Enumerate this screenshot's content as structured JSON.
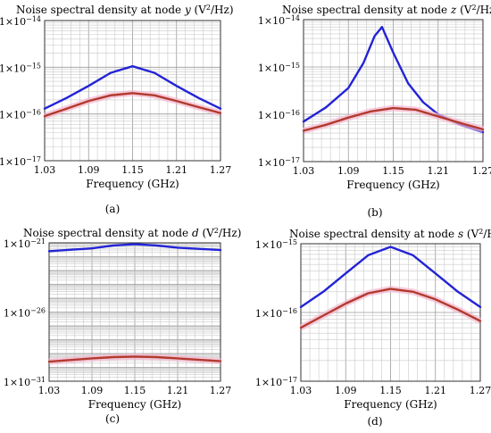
{
  "colors": {
    "blue_series": "#2323d6",
    "red_series": "#b23a2e",
    "pink_band": "#f3b7cf",
    "grid": "#9a9a9a",
    "frame": "#333333"
  },
  "chart_data": [
    {
      "id": "a",
      "type": "line",
      "caption": "(a)",
      "title_parts": [
        "Noise spectral density at node ",
        "y",
        " (V",
        "2",
        "/Hz)"
      ],
      "xlabel": "Frequency (GHz)",
      "ylabel": "",
      "x_ticks": [
        "1.03",
        "1.09",
        "1.15",
        "1.21",
        "1.27"
      ],
      "xlim": [
        1.03,
        1.27
      ],
      "y_scale": "log",
      "ylim_exp": [
        -17,
        -14
      ],
      "y_ticks": [
        {
          "exp": -14,
          "mant": "1×10",
          "sup": "−14"
        },
        {
          "exp": -15,
          "mant": "1×10",
          "sup": "−15"
        },
        {
          "exp": -16,
          "mant": "1×10",
          "sup": "−16"
        },
        {
          "exp": -17,
          "mant": "1×10",
          "sup": "−17"
        }
      ],
      "grid": true,
      "series": [
        {
          "color": "blue",
          "x": [
            1.03,
            1.06,
            1.09,
            1.12,
            1.15,
            1.18,
            1.21,
            1.24,
            1.27
          ],
          "y": [
            1.3e-16,
            2.2e-16,
            4e-16,
            7.6e-16,
            1.05e-15,
            7.6e-16,
            4e-16,
            2.2e-16,
            1.3e-16
          ]
        },
        {
          "color": "red",
          "x": [
            1.03,
            1.06,
            1.09,
            1.12,
            1.15,
            1.18,
            1.21,
            1.24,
            1.27
          ],
          "y": [
            9e-17,
            1.3e-16,
            1.9e-16,
            2.5e-16,
            2.8e-16,
            2.5e-16,
            1.9e-16,
            1.4e-16,
            1.05e-16
          ]
        }
      ]
    },
    {
      "id": "b",
      "type": "line",
      "caption": "(b)",
      "title_parts": [
        "Noise spectral density at node ",
        "z",
        " (V",
        "2",
        "/Hz)"
      ],
      "xlabel": "Frequency (GHz)",
      "ylabel": "",
      "x_ticks": [
        "1.03",
        "1.09",
        "1.15",
        "1.21",
        "1.27"
      ],
      "xlim": [
        1.03,
        1.27
      ],
      "y_scale": "log",
      "ylim_exp": [
        -17,
        -14
      ],
      "y_ticks": [
        {
          "exp": -14,
          "mant": "1×10",
          "sup": "−14"
        },
        {
          "exp": -15,
          "mant": "1×10",
          "sup": "−15"
        },
        {
          "exp": -16,
          "mant": "1×10",
          "sup": "−16"
        },
        {
          "exp": -17,
          "mant": "1×10",
          "sup": "−17"
        }
      ],
      "grid": true,
      "series": [
        {
          "color": "blue",
          "x": [
            1.03,
            1.06,
            1.09,
            1.11,
            1.125,
            1.135,
            1.15,
            1.17,
            1.19,
            1.21,
            1.24,
            1.27
          ],
          "y": [
            7e-17,
            1.4e-16,
            3.6e-16,
            1.2e-15,
            4.5e-15,
            7e-15,
            2e-15,
            4.5e-16,
            1.8e-16,
            1e-16,
            6e-17,
            4.2e-17
          ]
        },
        {
          "color": "red",
          "x": [
            1.03,
            1.06,
            1.09,
            1.12,
            1.15,
            1.18,
            1.21,
            1.24,
            1.27
          ],
          "y": [
            4.5e-17,
            6e-17,
            8.5e-17,
            1.15e-16,
            1.35e-16,
            1.25e-16,
            9e-17,
            6.5e-17,
            4.8e-17
          ]
        }
      ]
    },
    {
      "id": "c",
      "type": "line",
      "caption": "(c)",
      "title_parts": [
        "Noise spectral density at node ",
        "d",
        " (V",
        "2",
        "/Hz)"
      ],
      "xlabel": "Frequency (GHz)",
      "ylabel": "",
      "x_ticks": [
        "1.03",
        "1.09",
        "1.15",
        "1.21",
        "1.27"
      ],
      "xlim": [
        1.03,
        1.27
      ],
      "y_scale": "log",
      "ylim_exp": [
        -31,
        -21
      ],
      "y_ticks": [
        {
          "exp": -21,
          "mant": "1×10",
          "sup": "−21"
        },
        {
          "exp": -26,
          "mant": "1×10",
          "sup": "−26"
        },
        {
          "exp": -31,
          "mant": "1×10",
          "sup": "−31"
        }
      ],
      "grid": true,
      "series": [
        {
          "color": "blue",
          "x": [
            1.03,
            1.09,
            1.12,
            1.15,
            1.18,
            1.21,
            1.27
          ],
          "y": [
            2.5e-22,
            4e-22,
            6.5e-22,
            8e-22,
            6.5e-22,
            4.5e-22,
            3e-22
          ]
        },
        {
          "color": "red",
          "x": [
            1.03,
            1.09,
            1.12,
            1.15,
            1.18,
            1.21,
            1.27
          ],
          "y": [
            2.6e-30,
            4.5e-30,
            5.5e-30,
            6e-30,
            5.5e-30,
            4.5e-30,
            2.8e-30
          ]
        }
      ]
    },
    {
      "id": "d",
      "type": "line",
      "caption": "(d)",
      "title_parts": [
        "Noise spectral density at node ",
        "s",
        " (V",
        "2",
        "/Hz)"
      ],
      "xlabel": "Frequency (GHz)",
      "ylabel": "",
      "x_ticks": [
        "1.03",
        "1.09",
        "1.15",
        "1.21",
        "1.27"
      ],
      "xlim": [
        1.03,
        1.27
      ],
      "y_scale": "log",
      "ylim_exp": [
        -17,
        -15
      ],
      "y_ticks": [
        {
          "exp": -15,
          "mant": "1×10",
          "sup": "−15"
        },
        {
          "exp": -16,
          "mant": "1×10",
          "sup": "−16"
        },
        {
          "exp": -17,
          "mant": "1×10",
          "sup": "−17"
        }
      ],
      "grid": true,
      "series": [
        {
          "color": "blue",
          "x": [
            1.03,
            1.06,
            1.09,
            1.12,
            1.15,
            1.18,
            1.21,
            1.24,
            1.27
          ],
          "y": [
            1.2e-16,
            2e-16,
            3.7e-16,
            6.8e-16,
            9e-16,
            6.8e-16,
            3.7e-16,
            2e-16,
            1.2e-16
          ]
        },
        {
          "color": "red",
          "x": [
            1.03,
            1.06,
            1.09,
            1.12,
            1.15,
            1.18,
            1.21,
            1.24,
            1.27
          ],
          "y": [
            6e-17,
            9e-17,
            1.35e-16,
            1.9e-16,
            2.2e-16,
            2e-16,
            1.55e-16,
            1.1e-16,
            7.5e-17
          ]
        }
      ]
    }
  ]
}
